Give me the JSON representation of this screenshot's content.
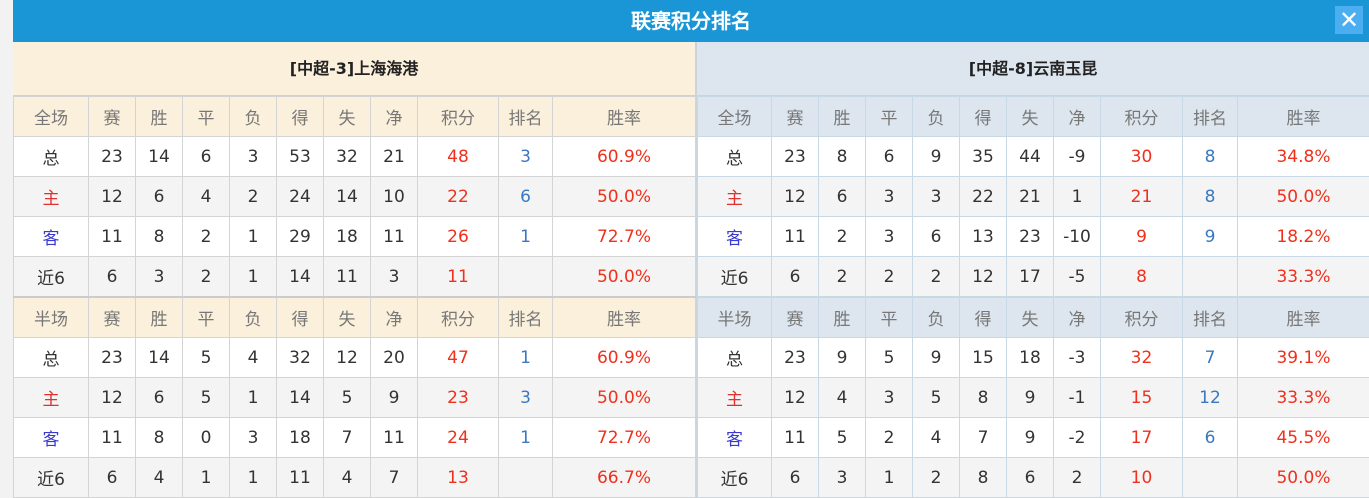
{
  "title": "联赛积分排名",
  "close_icon": "close-icon",
  "colors": {
    "header": "#1a96d6",
    "points": "#f0301c",
    "rank": "#3a78c0",
    "home": "#e03030",
    "away": "#3a3ad0"
  },
  "columns_full": [
    "全场",
    "赛",
    "胜",
    "平",
    "负",
    "得",
    "失",
    "净",
    "积分",
    "排名",
    "胜率"
  ],
  "columns_half": [
    "半场",
    "赛",
    "胜",
    "平",
    "负",
    "得",
    "失",
    "净",
    "积分",
    "排名",
    "胜率"
  ],
  "teams": [
    {
      "name": "[中超-3]上海海港",
      "full": [
        [
          "总",
          "23",
          "14",
          "6",
          "3",
          "53",
          "32",
          "21",
          "48",
          "3",
          "60.9%"
        ],
        [
          "主",
          "12",
          "6",
          "4",
          "2",
          "24",
          "14",
          "10",
          "22",
          "6",
          "50.0%"
        ],
        [
          "客",
          "11",
          "8",
          "2",
          "1",
          "29",
          "18",
          "11",
          "26",
          "1",
          "72.7%"
        ],
        [
          "近6",
          "6",
          "3",
          "2",
          "1",
          "14",
          "11",
          "3",
          "11",
          "",
          "50.0%"
        ]
      ],
      "half": [
        [
          "总",
          "23",
          "14",
          "5",
          "4",
          "32",
          "12",
          "20",
          "47",
          "1",
          "60.9%"
        ],
        [
          "主",
          "12",
          "6",
          "5",
          "1",
          "14",
          "5",
          "9",
          "23",
          "3",
          "50.0%"
        ],
        [
          "客",
          "11",
          "8",
          "0",
          "3",
          "18",
          "7",
          "11",
          "24",
          "1",
          "72.7%"
        ],
        [
          "近6",
          "6",
          "4",
          "1",
          "1",
          "11",
          "4",
          "7",
          "13",
          "",
          "66.7%"
        ]
      ]
    },
    {
      "name": "[中超-8]云南玉昆",
      "full": [
        [
          "总",
          "23",
          "8",
          "6",
          "9",
          "35",
          "44",
          "-9",
          "30",
          "8",
          "34.8%"
        ],
        [
          "主",
          "12",
          "6",
          "3",
          "3",
          "22",
          "21",
          "1",
          "21",
          "8",
          "50.0%"
        ],
        [
          "客",
          "11",
          "2",
          "3",
          "6",
          "13",
          "23",
          "-10",
          "9",
          "9",
          "18.2%"
        ],
        [
          "近6",
          "6",
          "2",
          "2",
          "2",
          "12",
          "17",
          "-5",
          "8",
          "",
          "33.3%"
        ]
      ],
      "half": [
        [
          "总",
          "23",
          "9",
          "5",
          "9",
          "15",
          "18",
          "-3",
          "32",
          "7",
          "39.1%"
        ],
        [
          "主",
          "12",
          "4",
          "3",
          "5",
          "8",
          "9",
          "-1",
          "15",
          "12",
          "33.3%"
        ],
        [
          "客",
          "11",
          "5",
          "2",
          "4",
          "7",
          "9",
          "-2",
          "17",
          "6",
          "45.5%"
        ],
        [
          "近6",
          "6",
          "3",
          "1",
          "2",
          "8",
          "6",
          "2",
          "10",
          "",
          "50.0%"
        ]
      ]
    }
  ]
}
